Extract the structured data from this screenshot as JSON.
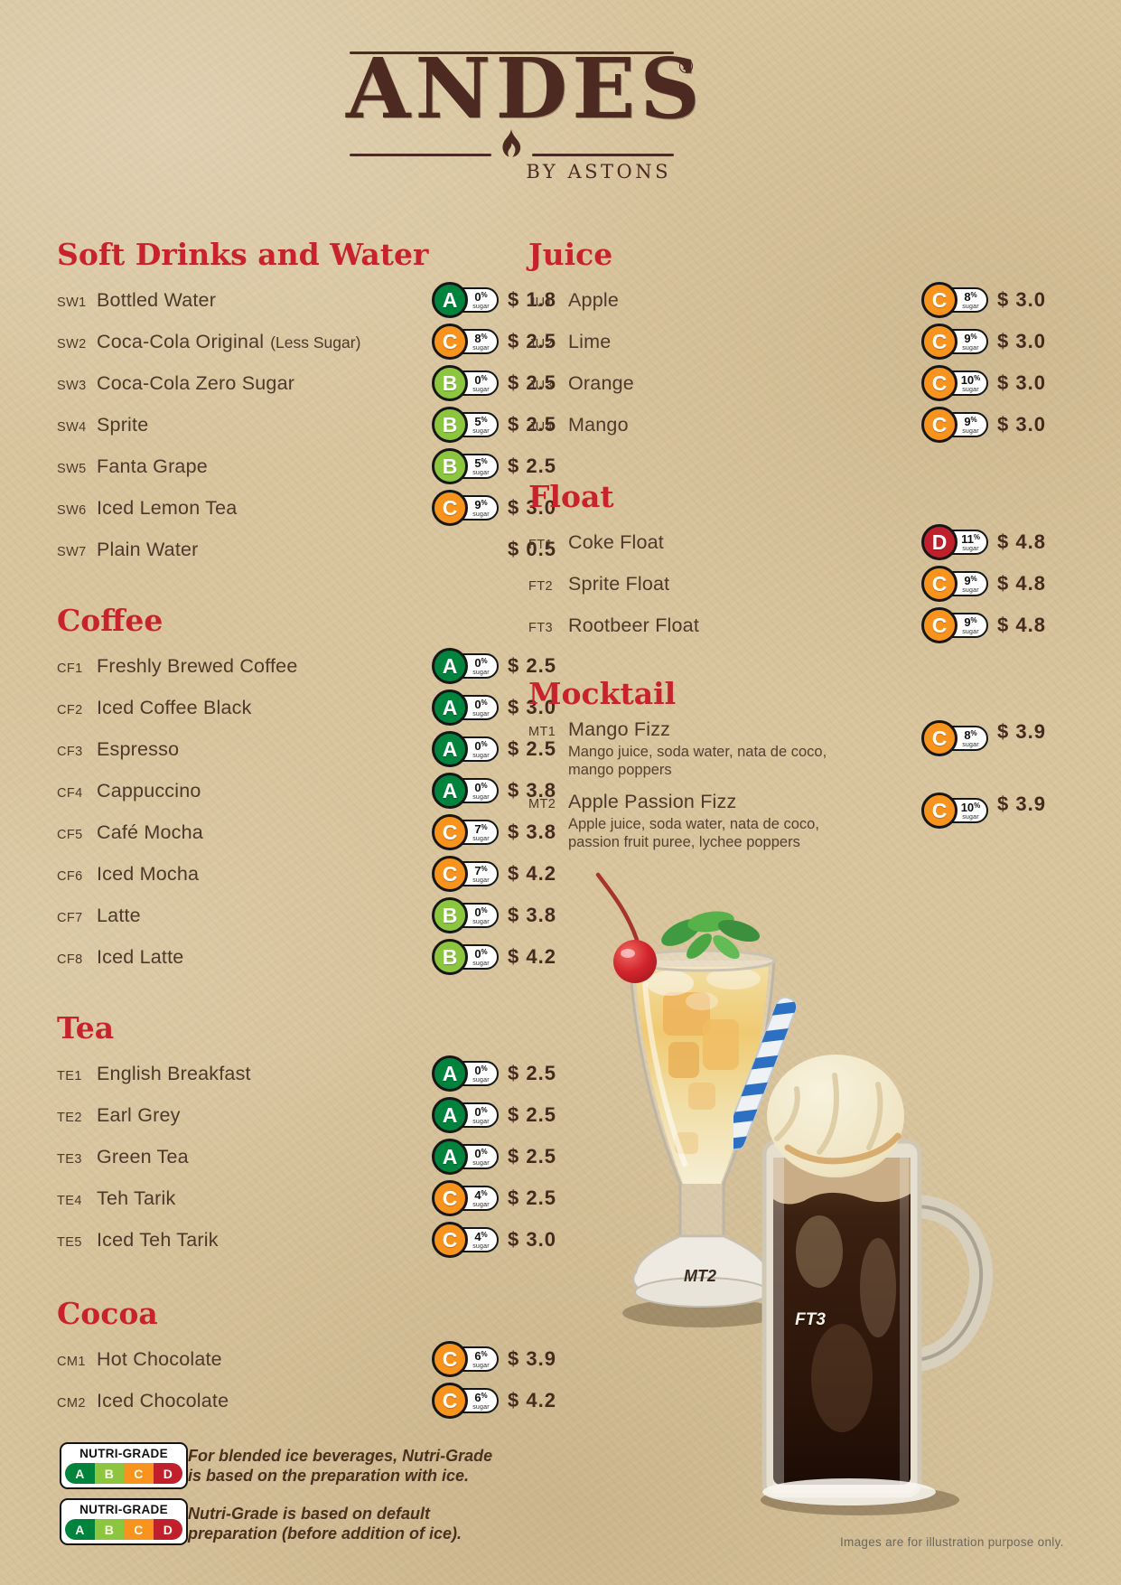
{
  "header": {
    "brand": "ANDES",
    "registered_mark": "®",
    "tagline": "BY ASTONS"
  },
  "badge_colors": {
    "A": "#00843D",
    "B": "#8CC63F",
    "C": "#F8941E",
    "D": "#BF202B"
  },
  "badge": {
    "percent_sign": "%",
    "sugar_word": "sugar"
  },
  "sections": {
    "soft_drinks": {
      "title": "Soft Drinks and Water",
      "items": [
        {
          "code": "SW1",
          "name": "Bottled Water",
          "grade": "A",
          "sugar": "0",
          "price": "$ 1.8"
        },
        {
          "code": "SW2",
          "name": "Coca-Cola Original",
          "note": "(Less Sugar)",
          "grade": "C",
          "sugar": "8",
          "price": "$ 2.5"
        },
        {
          "code": "SW3",
          "name": "Coca-Cola Zero Sugar",
          "grade": "B",
          "sugar": "0",
          "price": "$ 2.5"
        },
        {
          "code": "SW4",
          "name": "Sprite",
          "grade": "B",
          "sugar": "5",
          "price": "$ 2.5"
        },
        {
          "code": "SW5",
          "name": "Fanta Grape",
          "grade": "B",
          "sugar": "5",
          "price": "$ 2.5"
        },
        {
          "code": "SW6",
          "name": "Iced Lemon Tea",
          "grade": "C",
          "sugar": "9",
          "price": "$ 3.0"
        },
        {
          "code": "SW7",
          "name": "Plain Water",
          "price": "$ 0.5"
        }
      ]
    },
    "coffee": {
      "title": "Coffee",
      "items": [
        {
          "code": "CF1",
          "name": "Freshly Brewed Coffee",
          "grade": "A",
          "sugar": "0",
          "price": "$ 2.5"
        },
        {
          "code": "CF2",
          "name": "Iced Coffee Black",
          "grade": "A",
          "sugar": "0",
          "price": "$ 3.0"
        },
        {
          "code": "CF3",
          "name": "Espresso",
          "grade": "A",
          "sugar": "0",
          "price": "$ 2.5"
        },
        {
          "code": "CF4",
          "name": "Cappuccino",
          "grade": "A",
          "sugar": "0",
          "price": "$ 3.8"
        },
        {
          "code": "CF5",
          "name": "Café Mocha",
          "grade": "C",
          "sugar": "7",
          "price": "$ 3.8"
        },
        {
          "code": "CF6",
          "name": "Iced Mocha",
          "grade": "C",
          "sugar": "7",
          "price": "$ 4.2"
        },
        {
          "code": "CF7",
          "name": "Latte",
          "grade": "B",
          "sugar": "0",
          "price": "$ 3.8"
        },
        {
          "code": "CF8",
          "name": "Iced Latte",
          "grade": "B",
          "sugar": "0",
          "price": "$ 4.2"
        }
      ]
    },
    "tea": {
      "title": "Tea",
      "items": [
        {
          "code": "TE1",
          "name": "English Breakfast",
          "grade": "A",
          "sugar": "0",
          "price": "$ 2.5"
        },
        {
          "code": "TE2",
          "name": "Earl Grey",
          "grade": "A",
          "sugar": "0",
          "price": "$ 2.5"
        },
        {
          "code": "TE3",
          "name": "Green Tea",
          "grade": "A",
          "sugar": "0",
          "price": "$ 2.5"
        },
        {
          "code": "TE4",
          "name": "Teh Tarik",
          "grade": "C",
          "sugar": "4",
          "price": "$ 2.5"
        },
        {
          "code": "TE5",
          "name": "Iced Teh Tarik",
          "grade": "C",
          "sugar": "4",
          "price": "$ 3.0"
        }
      ]
    },
    "cocoa": {
      "title": "Cocoa",
      "items": [
        {
          "code": "CM1",
          "name": "Hot Chocolate",
          "grade": "C",
          "sugar": "6",
          "price": "$ 3.9"
        },
        {
          "code": "CM2",
          "name": "Iced Chocolate",
          "grade": "C",
          "sugar": "6",
          "price": "$ 4.2"
        }
      ]
    },
    "juice": {
      "title": "Juice",
      "items": [
        {
          "code": "JU1",
          "name": "Apple",
          "grade": "C",
          "sugar": "8",
          "price": "$ 3.0"
        },
        {
          "code": "JU2",
          "name": "Lime",
          "grade": "C",
          "sugar": "9",
          "price": "$ 3.0"
        },
        {
          "code": "JU3",
          "name": "Orange",
          "grade": "C",
          "sugar": "10",
          "price": "$ 3.0"
        },
        {
          "code": "JU4",
          "name": "Mango",
          "grade": "C",
          "sugar": "9",
          "price": "$ 3.0"
        }
      ]
    },
    "float": {
      "title": "Float",
      "items": [
        {
          "code": "FT1",
          "name": "Coke Float",
          "grade": "D",
          "sugar": "11",
          "price": "$ 4.8"
        },
        {
          "code": "FT2",
          "name": "Sprite Float",
          "grade": "C",
          "sugar": "9",
          "price": "$ 4.8"
        },
        {
          "code": "FT3",
          "name": "Rootbeer Float",
          "grade": "C",
          "sugar": "9",
          "price": "$ 4.8"
        }
      ]
    },
    "mocktail": {
      "title": "Mocktail",
      "items": [
        {
          "code": "MT1",
          "name": "Mango Fizz",
          "desc": "Mango juice, soda water, nata de coco, mango poppers",
          "grade": "C",
          "sugar": "8",
          "price": "$ 3.9"
        },
        {
          "code": "MT2",
          "name": "Apple Passion Fizz",
          "desc": "Apple juice, soda water, nata de coco, passion fruit puree, lychee poppers",
          "grade": "C",
          "sugar": "10",
          "price": "$ 3.9"
        }
      ]
    }
  },
  "legend": {
    "label_title": "NUTRI-GRADE",
    "grades": [
      "A",
      "B",
      "C",
      "D"
    ],
    "notes": [
      "For blended ice beverages, Nutri-Grade is based on the preparation with ice.",
      "Nutri-Grade is based on default preparation (before addition of ice)."
    ]
  },
  "images": {
    "glass_label": "MT2",
    "mug_label": "FT3",
    "footnote": "Images are for illustration purpose only."
  }
}
